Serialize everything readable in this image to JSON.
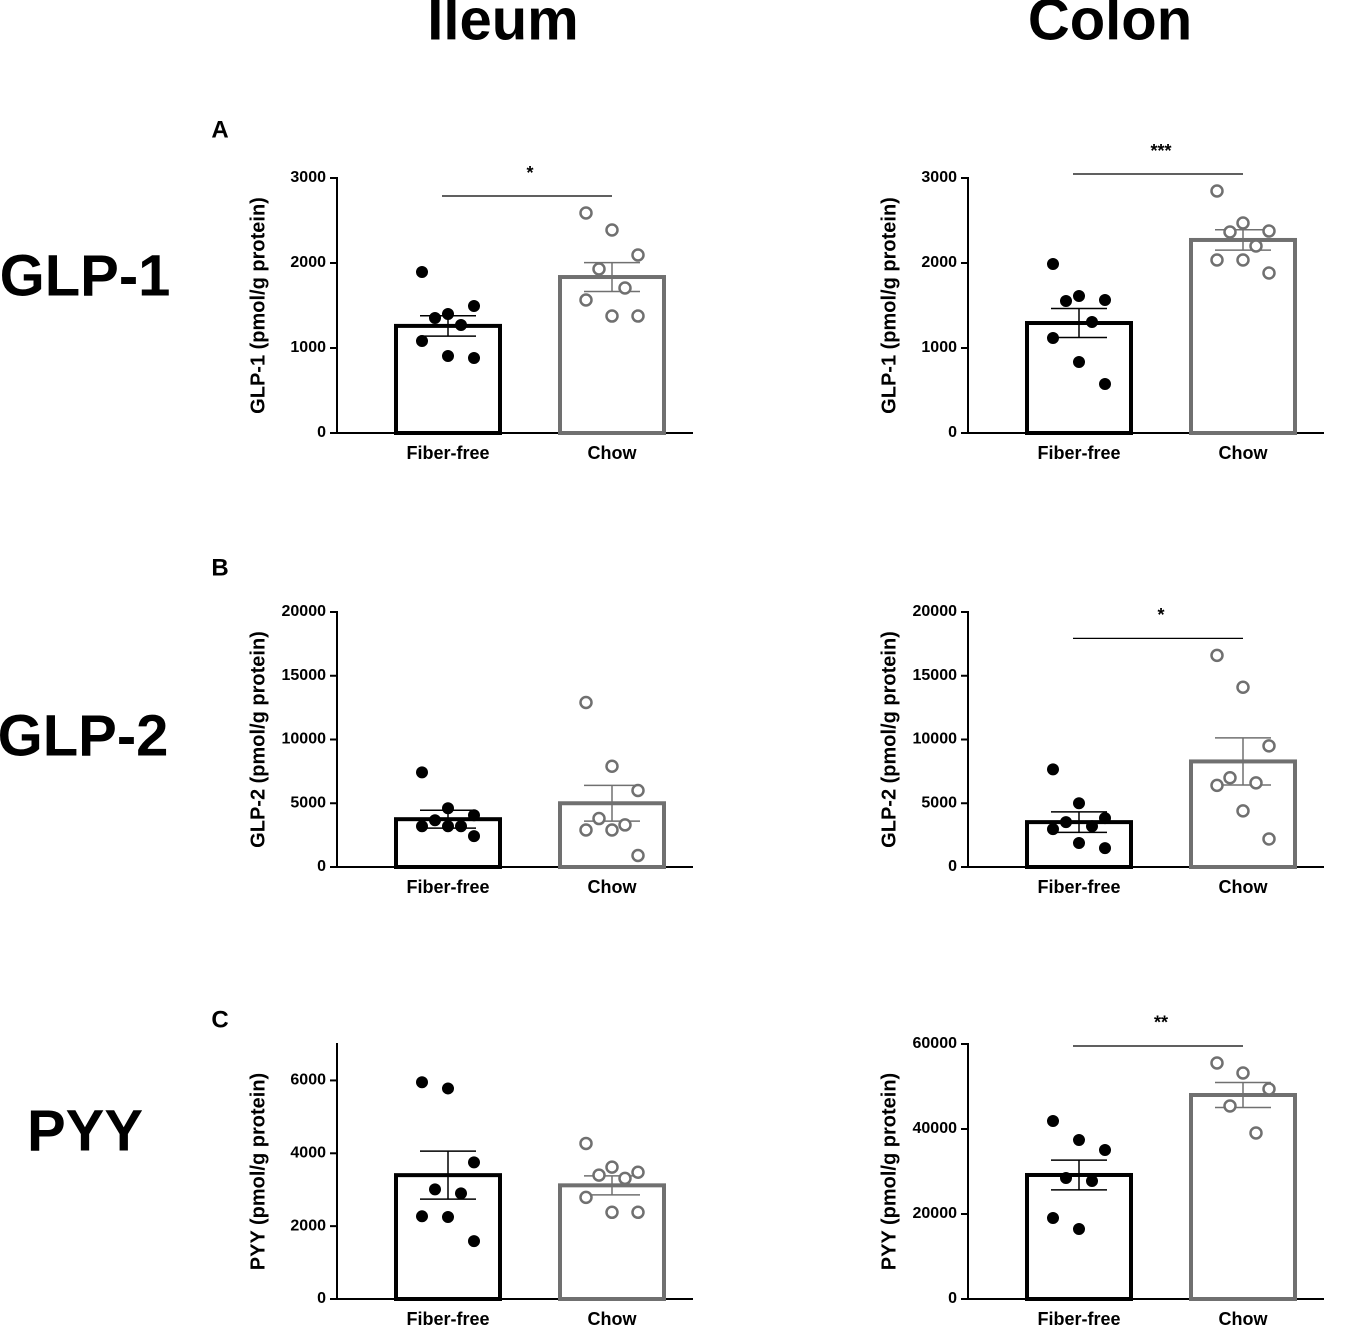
{
  "columns": [
    "Ileum",
    "Colon"
  ],
  "rows": [
    "GLP-1",
    "GLP-2",
    "PYY"
  ],
  "panels": [
    "A",
    "B",
    "C"
  ],
  "chart_data": [
    {
      "type": "bar",
      "ylabel": "GLP-1 (pmol/g protein)",
      "categories": [
        "Fiber-free",
        "Chow"
      ],
      "values": [
        1260,
        1835
      ],
      "errors": [
        120,
        170
      ],
      "points": [
        [
          1894,
          1400,
          1494,
          1353,
          1270,
          1082,
          906,
          882
        ],
        [
          2588,
          2388,
          2094,
          1929,
          1706,
          1565,
          1376,
          1376
        ]
      ],
      "colors": [
        "#000000",
        "#707070"
      ],
      "hollow": [
        false,
        true
      ],
      "ylim": [
        0,
        3000
      ],
      "yticks": [
        0,
        1000,
        2000,
        3000
      ],
      "significance": "*"
    },
    {
      "type": "bar",
      "ylabel": "GLP-1 (pmol/g protein)",
      "categories": [
        "Fiber-free",
        "Chow"
      ],
      "values": [
        1294,
        2271
      ],
      "errors": [
        170,
        120
      ],
      "points": [
        [
          1988,
          1612,
          1565,
          1553,
          1306,
          1118,
          835,
          576
        ],
        [
          2847,
          2471,
          2376,
          2365,
          2200,
          2035,
          2035,
          1882
        ]
      ],
      "colors": [
        "#000000",
        "#707070"
      ],
      "hollow": [
        false,
        true
      ],
      "ylim": [
        0,
        3000
      ],
      "yticks": [
        0,
        1000,
        2000,
        3000
      ],
      "significance": "***"
    },
    {
      "type": "bar",
      "ylabel": "GLP-2 (pmol/g protein)",
      "categories": [
        "Fiber-free",
        "Chow"
      ],
      "values": [
        3750,
        5000
      ],
      "errors": [
        700,
        1400
      ],
      "points": [
        [
          7420,
          4610,
          4060,
          3670,
          3200,
          3200,
          3200,
          2420
        ],
        [
          12900,
          7900,
          6000,
          3800,
          3300,
          2900,
          2900,
          900
        ]
      ],
      "colors": [
        "#000000",
        "#707070"
      ],
      "hollow": [
        false,
        true
      ],
      "ylim": [
        0,
        20000
      ],
      "yticks": [
        0,
        5000,
        10000,
        15000,
        20000
      ]
    },
    {
      "type": "bar",
      "ylabel": "GLP-2 (pmol/g protein)",
      "categories": [
        "Fiber-free",
        "Chow"
      ],
      "values": [
        3520,
        8280
      ],
      "errors": [
        800,
        1850
      ],
      "points": [
        [
          7660,
          5000,
          3830,
          3520,
          3200,
          2970,
          1880,
          1480
        ],
        [
          16600,
          14100,
          9500,
          7000,
          6600,
          6400,
          4400,
          2200
        ]
      ],
      "colors": [
        "#000000",
        "#707070"
      ],
      "hollow": [
        false,
        true
      ],
      "ylim": [
        0,
        20000
      ],
      "yticks": [
        0,
        5000,
        10000,
        15000,
        20000
      ],
      "significance": "*"
    },
    {
      "type": "bar",
      "ylabel": "PYY (pmol/g protein)",
      "categories": [
        "Fiber-free",
        "Chow"
      ],
      "values": [
        3400,
        3120
      ],
      "errors": [
        660,
        260
      ],
      "points": [
        [
          5950,
          5780,
          3750,
          3010,
          2900,
          2270,
          2250,
          1590
        ],
        [
          4270,
          3620,
          3480,
          3400,
          3310,
          2790,
          2380,
          2380
        ]
      ],
      "colors": [
        "#000000",
        "#707070"
      ],
      "hollow": [
        false,
        true
      ],
      "ylim": [
        0,
        7000
      ],
      "yticks": [
        0,
        2000,
        4000,
        6000
      ]
    },
    {
      "type": "bar",
      "ylabel": "PYY (pmol/g protein)",
      "categories": [
        "Fiber-free",
        "Chow"
      ],
      "values": [
        29180,
        48000
      ],
      "errors": [
        3500,
        2940
      ],
      "points": [
        [
          41880,
          37400,
          35060,
          28470,
          27760,
          19060,
          16470
        ],
        [
          55530,
          53180,
          49410,
          45410,
          39060
        ]
      ],
      "colors": [
        "#000000",
        "#707070"
      ],
      "hollow": [
        false,
        true
      ],
      "ylim": [
        0,
        60000
      ],
      "yticks": [
        0,
        20000,
        40000,
        60000
      ],
      "significance": "**"
    }
  ]
}
